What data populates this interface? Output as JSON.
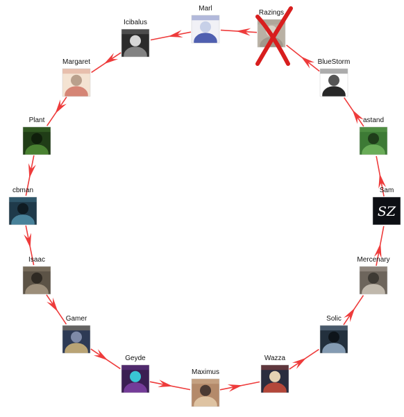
{
  "diagram": {
    "type": "directed-cycle",
    "edge_color": "#ee3b3b",
    "eliminated_mark_color": "#d81e1e",
    "nodes": [
      {
        "id": "marl",
        "label": "Marl",
        "avatar": "anime-white-hair-avatar",
        "colors": [
          "#f1f1f6",
          "#3d4fa8",
          "#c7d0e8"
        ]
      },
      {
        "id": "razings",
        "label": "Razings",
        "avatar": "gray-blurred-avatar",
        "colors": [
          "#b9b1a4",
          "#9e968a",
          "#d9d2c6"
        ],
        "eliminated": true
      },
      {
        "id": "bluestorm",
        "label": "BlueStorm",
        "avatar": "cartoon-face-avatar",
        "colors": [
          "#ffffff",
          "#111111",
          "#555555"
        ]
      },
      {
        "id": "astand",
        "label": "astand",
        "avatar": "frog-avatar",
        "colors": [
          "#3d7a35",
          "#6fb15c",
          "#1f3d1a"
        ]
      },
      {
        "id": "sam",
        "label": "Sam",
        "avatar": "sz-logo-avatar",
        "colors": [
          "#0d0f14",
          "#ffffff",
          "#2a2e38"
        ],
        "text": "SZ"
      },
      {
        "id": "mercenary",
        "label": "Mercenary",
        "avatar": "warrior-avatar",
        "colors": [
          "#6d655c",
          "#c9c1b5",
          "#3e3a34"
        ]
      },
      {
        "id": "solic",
        "label": "Solic",
        "avatar": "grim-reaper-avatar",
        "colors": [
          "#23303d",
          "#8fa7bf",
          "#0e141a"
        ]
      },
      {
        "id": "wazza",
        "label": "Wazza",
        "avatar": "pirate-avatar",
        "colors": [
          "#2a2d3f",
          "#c24a3a",
          "#e5d3b3"
        ]
      },
      {
        "id": "maximus",
        "label": "Maximus",
        "avatar": "smiling-man-avatar",
        "colors": [
          "#b48a6a",
          "#e2c9a8",
          "#4a3a33"
        ]
      },
      {
        "id": "geyde",
        "label": "Geyde",
        "avatar": "purple-octoling-avatar",
        "colors": [
          "#3a1f52",
          "#7b3fa0",
          "#39c6d4"
        ]
      },
      {
        "id": "gamer",
        "label": "Gamer",
        "avatar": "officer-avatar",
        "colors": [
          "#2d3a55",
          "#c9b079",
          "#7e8aa8"
        ]
      },
      {
        "id": "isaac",
        "label": "Isaac",
        "avatar": "hooded-figure-avatar",
        "colors": [
          "#5c5346",
          "#a39580",
          "#2f2a23"
        ]
      },
      {
        "id": "cbman",
        "label": "cbman",
        "avatar": "armored-knight-avatar",
        "colors": [
          "#1f3a4a",
          "#4e8ba3",
          "#0f1b22"
        ]
      },
      {
        "id": "plant",
        "label": "Plant",
        "avatar": "plant-monster-avatar",
        "colors": [
          "#203d17",
          "#4f8a35",
          "#0f1f0b"
        ]
      },
      {
        "id": "margaret",
        "label": "Margaret",
        "avatar": "glasses-anime-avatar",
        "colors": [
          "#f4e3d2",
          "#d27a6a",
          "#b9a08c"
        ]
      },
      {
        "id": "icibalus",
        "label": "Icibalus",
        "avatar": "dark-rider-avatar",
        "colors": [
          "#2b2b2b",
          "#8c8c8c",
          "#d6d6d6"
        ]
      }
    ],
    "edges": [
      {
        "from": "razings",
        "to": "marl"
      },
      {
        "from": "bluestorm",
        "to": "razings"
      },
      {
        "from": "astand",
        "to": "bluestorm"
      },
      {
        "from": "sam",
        "to": "astand"
      },
      {
        "from": "mercenary",
        "to": "sam"
      },
      {
        "from": "solic",
        "to": "mercenary"
      },
      {
        "from": "wazza",
        "to": "solic"
      },
      {
        "from": "maximus",
        "to": "wazza"
      },
      {
        "from": "geyde",
        "to": "maximus"
      },
      {
        "from": "gamer",
        "to": "geyde"
      },
      {
        "from": "isaac",
        "to": "gamer"
      },
      {
        "from": "cbman",
        "to": "isaac"
      },
      {
        "from": "plant",
        "to": "cbman"
      },
      {
        "from": "margaret",
        "to": "plant"
      },
      {
        "from": "icibalus",
        "to": "margaret"
      },
      {
        "from": "marl",
        "to": "icibalus"
      }
    ]
  }
}
